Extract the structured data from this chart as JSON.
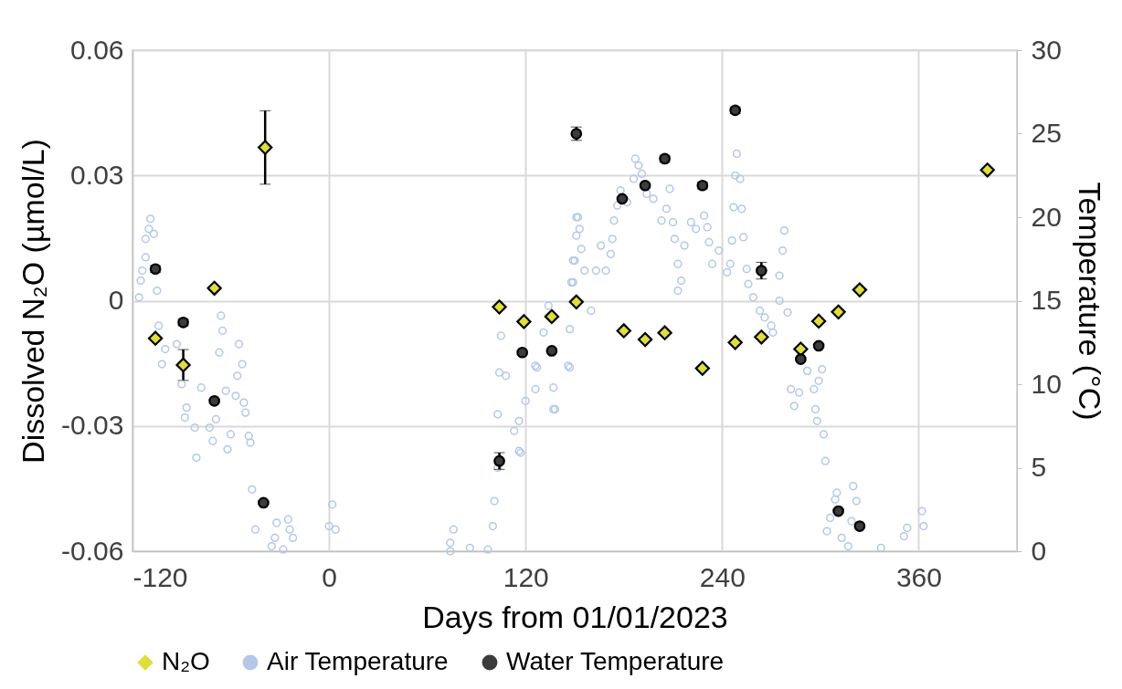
{
  "chart_data": {
    "type": "scatter",
    "xlabel": "Days from 01/01/2023",
    "ylabel": "Dissolved N₂O (µmol/L)",
    "y2label": "Temperature (°C)",
    "xlim": [
      -120,
      420
    ],
    "xticks": [
      -120,
      0,
      120,
      240,
      360
    ],
    "ylim": [
      -0.06,
      0.06
    ],
    "yticks": [
      -0.06,
      -0.03,
      0,
      0.03,
      0.06
    ],
    "y2lim": [
      0,
      30
    ],
    "y2ticks": [
      0,
      5,
      10,
      15,
      20,
      25,
      30
    ],
    "grid": true,
    "legend": "bottom",
    "series": [
      {
        "name": "N₂O",
        "marker": "diamond",
        "color": "#dede3c",
        "x": [
          -106,
          -89,
          -70,
          -39,
          104,
          119,
          136,
          151,
          180,
          193,
          205,
          228,
          248,
          264,
          288,
          299,
          311,
          324,
          402
        ],
        "values": [
          -0.009,
          -0.0154,
          0.003,
          0.0367,
          -0.0015,
          -0.005,
          -0.0038,
          -0.0003,
          -0.0072,
          -0.0093,
          -0.0077,
          -0.0162,
          -0.01,
          -0.0087,
          -0.0116,
          -0.0049,
          -0.0027,
          0.0026,
          0.0313
        ],
        "errors": [
          null,
          0.0037,
          null,
          0.0088,
          null,
          null,
          null,
          null,
          null,
          null,
          null,
          null,
          null,
          null,
          null,
          null,
          null,
          null,
          null
        ]
      },
      {
        "name": "Air Temperature",
        "marker": "circle",
        "axis": "y2",
        "color": "#b4c7e7",
        "x": [
          -109,
          -110,
          -107,
          -112,
          -112,
          -114,
          -115,
          -116,
          -105,
          -104,
          -100,
          -102,
          -93,
          -90,
          -87,
          -88,
          -82,
          -81,
          -78,
          -73,
          -71,
          -66,
          -65,
          -67,
          -63,
          -69,
          -62,
          -60,
          -57,
          -55,
          -53,
          -56,
          -51,
          -52,
          -49,
          -48,
          -47,
          -45,
          -32,
          -25,
          -24,
          -22,
          -33,
          -28,
          -35,
          2,
          0,
          4,
          76,
          74,
          74,
          86,
          97,
          100,
          101,
          103,
          104,
          105,
          103,
          113,
          117,
          116,
          120,
          126,
          127,
          131,
          134,
          138,
          137,
          146,
          147,
          149,
          150,
          151,
          151,
          108,
          116,
          126,
          137,
          147,
          148,
          149,
          152,
          153,
          154,
          156,
          160,
          163,
          166,
          169,
          172,
          173,
          174,
          176,
          178,
          182,
          186,
          187,
          189,
          191,
          194,
          198,
          203,
          206,
          208,
          210,
          211,
          213,
          215,
          213,
          217,
          221,
          224,
          229,
          231,
          232,
          234,
          238,
          243,
          245,
          246,
          247,
          248,
          249,
          252,
          253,
          251,
          255,
          256,
          259,
          263,
          266,
          270,
          271,
          275,
          275,
          277,
          278,
          280,
          282,
          284,
          287,
          292,
          296,
          299,
          301,
          297,
          298,
          302,
          303,
          304,
          306,
          309,
          310,
          313,
          317,
          319,
          320,
          322,
          337,
          351,
          353,
          362,
          363
        ],
        "values": [
          19.9,
          19.3,
          19.0,
          18.7,
          17.6,
          16.8,
          16.2,
          15.2,
          15.6,
          13.5,
          12.1,
          11.2,
          12.4,
          10.0,
          8.6,
          8.0,
          7.4,
          5.6,
          9.8,
          7.4,
          6.6,
          14.1,
          13.2,
          11.9,
          9.6,
          7.9,
          6.1,
          7.0,
          9.3,
          12.4,
          11.2,
          10.5,
          8.3,
          8.9,
          6.9,
          6.5,
          3.7,
          1.3,
          1.7,
          1.9,
          1.3,
          0.8,
          0.8,
          0.1,
          0.3,
          2.8,
          1.5,
          1.3,
          1.3,
          0.5,
          0.0,
          0.2,
          0.1,
          1.5,
          3.0,
          5.0,
          10.7,
          12.9,
          8.2,
          7.2,
          5.9,
          7.8,
          9.0,
          9.7,
          11.0,
          13.1,
          14.7,
          8.5,
          9.8,
          11.1,
          13.3,
          16.1,
          17.4,
          18.9,
          20.0,
          10.5,
          6.0,
          11.1,
          8.5,
          11.0,
          16.1,
          17.4,
          20.0,
          19.3,
          18.1,
          16.8,
          14.4,
          16.8,
          18.3,
          16.8,
          17.8,
          18.7,
          19.8,
          20.7,
          21.6,
          20.9,
          22.3,
          23.5,
          23.1,
          22.6,
          21.4,
          21.1,
          19.8,
          20.5,
          21.7,
          19.7,
          18.7,
          17.2,
          16.2,
          15.6,
          18.3,
          19.7,
          19.3,
          20.1,
          19.4,
          18.5,
          17.2,
          18.0,
          16.7,
          17.2,
          18.6,
          20.6,
          22.5,
          23.8,
          20.5,
          18.8,
          22.3,
          16.9,
          16.0,
          15.2,
          14.4,
          14.0,
          13.5,
          13.1,
          15.0,
          16.5,
          18.0,
          19.2,
          14.3,
          9.7,
          8.7,
          9.5,
          10.8,
          9.7,
          10.2,
          10.9,
          8.5,
          7.8,
          7.0,
          5.4,
          1.2,
          2.0,
          3.1,
          3.5,
          0.8,
          0.3,
          1.8,
          3.9,
          3.0,
          0.2,
          0.9,
          1.4,
          2.4,
          1.5
        ]
      },
      {
        "name": "Water Temperature",
        "marker": "circle",
        "axis": "y2",
        "color": "#3c3c3c",
        "x": [
          -106,
          -89,
          -70,
          -40,
          104,
          118,
          136,
          151,
          179,
          193,
          205,
          228,
          248,
          264,
          288,
          299,
          311,
          324
        ],
        "values": [
          16.9,
          13.7,
          9.0,
          2.9,
          5.4,
          11.9,
          12.0,
          25.0,
          21.1,
          21.9,
          23.5,
          21.9,
          26.4,
          16.8,
          11.5,
          12.3,
          2.4,
          1.5
        ],
        "errors": [
          0.2,
          0.2,
          0.1,
          0.1,
          0.5,
          0.1,
          0.1,
          0.4,
          0.1,
          0.1,
          0.2,
          0.2,
          0.2,
          0.5,
          0.1,
          0.1,
          0.1,
          0.1
        ]
      }
    ]
  }
}
